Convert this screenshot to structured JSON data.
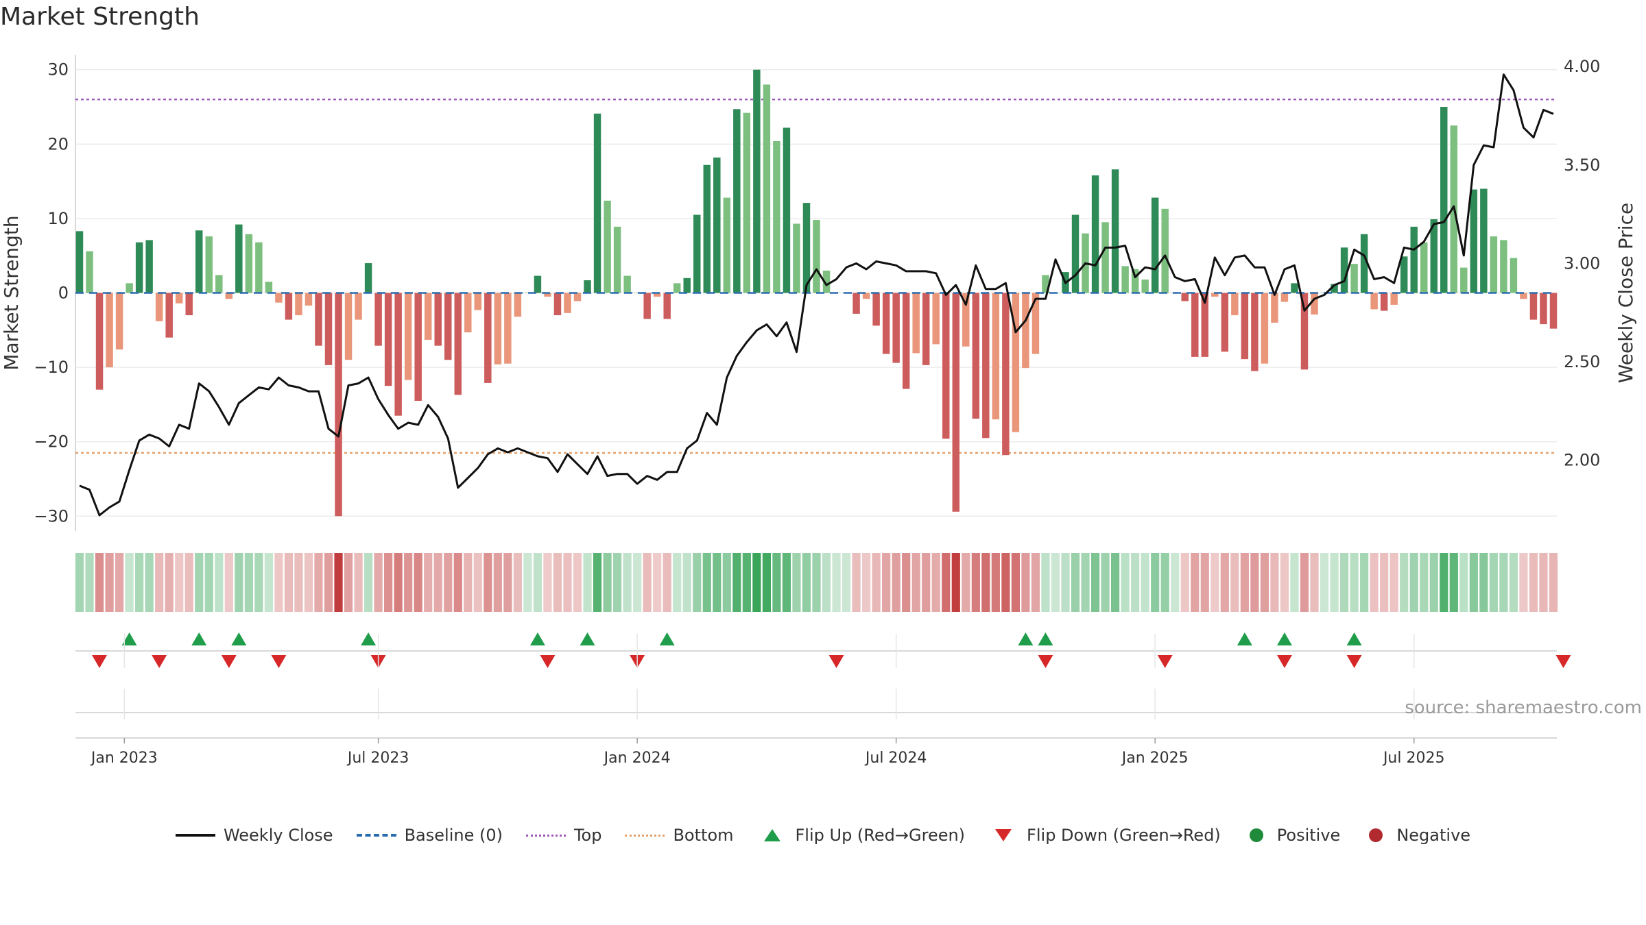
{
  "page": {
    "title": "Market Strength",
    "source": "source: sharemaestro.com"
  },
  "colors": {
    "pos_strong": "#2e8b57",
    "pos_light": "#7cbf7f",
    "neg_strong": "#cd5c5c",
    "neg_light": "#e9967a",
    "top_line": "#9b59b6",
    "bottom_line": "#e3a06a",
    "baseline": "#2b6cb0",
    "close_line": "#111111",
    "flip_up": "#1f9d4a",
    "flip_down": "#d62828"
  },
  "legend": [
    {
      "label": "Weekly Close",
      "swatch": "line"
    },
    {
      "label": "Baseline (0)",
      "swatch": "dash-blue"
    },
    {
      "label": "Top",
      "swatch": "dot-purple"
    },
    {
      "label": "Bottom",
      "swatch": "dot-orange"
    },
    {
      "label": "Flip Up (Red→Green)",
      "swatch": "tri-up"
    },
    {
      "label": "Flip Down (Green→Red)",
      "swatch": "tri-down"
    },
    {
      "label": "Positive",
      "swatch": "circ-green"
    },
    {
      "label": "Negative",
      "swatch": "circ-red"
    }
  ],
  "chart_data": {
    "type": "bar",
    "title": "Market Strength",
    "ylabel": "Market Strength",
    "y2label": "Weekly Close Price",
    "ylim": [
      -32,
      32
    ],
    "y2lim": [
      1.64,
      4.06
    ],
    "yticks": [
      "30",
      "20",
      "10",
      "0",
      "−10",
      "−20",
      "−30"
    ],
    "y2ticks": [
      "4.00",
      "3.50",
      "3.00",
      "2.50",
      "2.00"
    ],
    "xtick_labels": [
      "Jan 2023",
      "Jul 2023",
      "Jan 2024",
      "Jul 2024",
      "Jan 2025",
      "Jul 2025"
    ],
    "top_level": 26,
    "bottom_level": -21.5,
    "grid": true,
    "legend_position": "bottom",
    "strength": [
      8.3,
      5.6,
      -13.0,
      -10.0,
      -7.6,
      1.3,
      6.8,
      7.1,
      -3.8,
      -6.0,
      -1.4,
      -3.0,
      8.4,
      7.6,
      2.4,
      -0.8,
      9.2,
      7.9,
      6.8,
      1.5,
      -1.3,
      -3.6,
      -3.0,
      -1.7,
      -7.1,
      -9.7,
      -30.0,
      -9.0,
      -3.6,
      4.0,
      -7.1,
      -12.5,
      -16.5,
      -11.7,
      -14.5,
      -6.3,
      -7.1,
      -9.0,
      -13.7,
      -5.3,
      -2.3,
      -12.1,
      -9.6,
      -9.5,
      -3.2,
      0.0,
      2.3,
      -0.5,
      -3.0,
      -2.7,
      -1.1,
      1.7,
      24.1,
      12.4,
      8.9,
      2.3,
      0.0,
      -3.5,
      -0.5,
      -3.5,
      1.3,
      2.0,
      10.5,
      17.2,
      18.2,
      12.8,
      24.7,
      24.2,
      30.0,
      28.0,
      20.4,
      22.2,
      9.3,
      12.1,
      9.8,
      3.0,
      0.0,
      0.0,
      -2.8,
      -0.8,
      -4.4,
      -8.2,
      -9.4,
      -12.9,
      -8.1,
      -9.7,
      -6.9,
      -19.6,
      -29.4,
      -7.2,
      -16.9,
      -19.5,
      -17.0,
      -21.8,
      -18.7,
      -10.1,
      -8.2,
      2.4,
      0.0,
      2.8,
      10.5,
      8.0,
      15.8,
      9.5,
      16.6,
      3.6,
      3.2,
      1.8,
      12.8,
      11.3,
      0.0,
      -1.1,
      -8.6,
      -8.6,
      -0.5,
      -7.9,
      -3.0,
      -8.9,
      -10.5,
      -9.5,
      -4.0,
      -1.2,
      1.3,
      -10.3,
      -2.9,
      0.0,
      1.2,
      6.1,
      3.9,
      7.9,
      -2.2,
      -2.4,
      -1.6,
      4.9,
      8.9,
      6.8,
      9.9,
      25.0,
      22.5,
      3.4,
      13.9,
      14.0,
      7.6,
      7.1,
      4.7,
      -0.8,
      -3.6,
      -4.2,
      -4.8
    ],
    "close": [
      1.87,
      1.85,
      1.72,
      1.76,
      1.79,
      1.95,
      2.1,
      2.13,
      2.11,
      2.07,
      2.18,
      2.16,
      2.39,
      2.35,
      2.27,
      2.18,
      2.29,
      2.33,
      2.37,
      2.36,
      2.42,
      2.38,
      2.37,
      2.35,
      2.35,
      2.16,
      2.12,
      2.38,
      2.39,
      2.42,
      2.31,
      2.23,
      2.16,
      2.19,
      2.18,
      2.28,
      2.22,
      2.11,
      1.86,
      1.91,
      1.96,
      2.03,
      2.06,
      2.04,
      2.06,
      2.04,
      2.02,
      2.01,
      1.94,
      2.03,
      1.98,
      1.93,
      2.02,
      1.92,
      1.93,
      1.93,
      1.88,
      1.92,
      1.9,
      1.94,
      1.94,
      2.06,
      2.1,
      2.24,
      2.18,
      2.42,
      2.53,
      2.6,
      2.66,
      2.69,
      2.63,
      2.7,
      2.55,
      2.89,
      2.97,
      2.89,
      2.92,
      2.98,
      3.0,
      2.97,
      3.01,
      3.0,
      2.99,
      2.96,
      2.96,
      2.96,
      2.95,
      2.84,
      2.89,
      2.79,
      2.99,
      2.87,
      2.87,
      2.9,
      2.65,
      2.71,
      2.82,
      2.82,
      3.02,
      2.9,
      2.94,
      3.0,
      2.99,
      3.08,
      3.08,
      3.09,
      2.93,
      2.98,
      2.97,
      3.04,
      2.93,
      2.91,
      2.92,
      2.8,
      3.03,
      2.94,
      3.03,
      3.04,
      2.98,
      2.98,
      2.84,
      2.97,
      2.99,
      2.76,
      2.82,
      2.84,
      2.89,
      2.91,
      3.07,
      3.04,
      2.92,
      2.93,
      2.9,
      3.08,
      3.07,
      3.11,
      3.2,
      3.21,
      3.29,
      3.04,
      3.5,
      3.6,
      3.59,
      3.96,
      3.88,
      3.69,
      3.64,
      3.78,
      3.76
    ],
    "flip_up_index": [
      5,
      12,
      16,
      29,
      46,
      51,
      59,
      95,
      97,
      117,
      121,
      128
    ],
    "flip_down_index": [
      2,
      8,
      15,
      20,
      30,
      47,
      56,
      76,
      97,
      109,
      121,
      128,
      149
    ]
  }
}
